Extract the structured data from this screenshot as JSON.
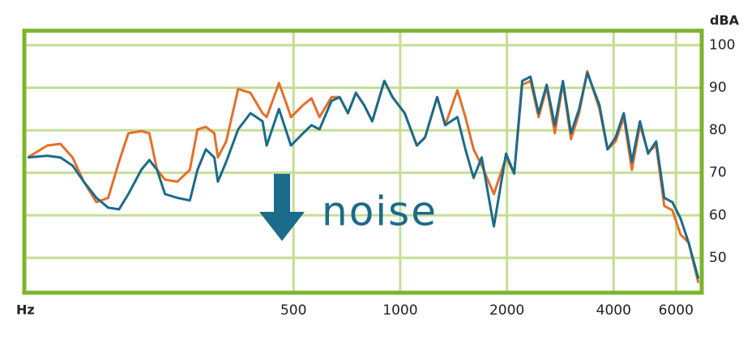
{
  "chart_data": {
    "type": "line",
    "x_label": "Hz",
    "y_label": "dBA",
    "annotation": "noise",
    "x": [
      89,
      101,
      110,
      119,
      128,
      139,
      150,
      161,
      171,
      186,
      196,
      206,
      217,
      235,
      255,
      268,
      283,
      299,
      306,
      323,
      349,
      378,
      409,
      420,
      455,
      479,
      492,
      532,
      562,
      592,
      640,
      675,
      712,
      750,
      791,
      834,
      902,
      951,
      1030,
      1114,
      1175,
      1271,
      1340,
      1450,
      1528,
      1611,
      1698,
      1838,
      1989,
      2097,
      2210,
      2331,
      2457,
      2590,
      2730,
      2878,
      3034,
      3198,
      3371,
      3648,
      3845,
      4053,
      4272,
      4503,
      4747,
      5004,
      5274,
      5560,
      5861,
      6178,
      6512,
      6940
    ],
    "series": [
      {
        "color": "#e2702b",
        "values": [
          73.6,
          76.4,
          76.8,
          73.6,
          67.9,
          63.1,
          64.1,
          72.6,
          79.3,
          79.8,
          79.3,
          70.7,
          68.4,
          67.9,
          70.7,
          80.2,
          80.8,
          79.3,
          73.6,
          77.4,
          89.7,
          88.8,
          84.0,
          83.1,
          91.1,
          85.9,
          83.1,
          85.9,
          87.5,
          83.1,
          87.8,
          87.8,
          84.0,
          88.8,
          85.9,
          82.1,
          91.6,
          87.8,
          84.0,
          76.4,
          78.3,
          87.8,
          81.2,
          89.4,
          83.1,
          75.5,
          71.7,
          65.0,
          73.6,
          69.8,
          90.7,
          91.6,
          83.1,
          90.1,
          79.3,
          91.1,
          77.9,
          84.0,
          93.9,
          85.0,
          75.5,
          77.4,
          83.1,
          70.7,
          81.2,
          74.9,
          76.4,
          62.2,
          61.2,
          55.5,
          53.6,
          44.1
        ]
      },
      {
        "color": "#1b6b8a",
        "values": [
          73.6,
          74.0,
          73.6,
          71.7,
          67.9,
          64.1,
          61.8,
          61.4,
          65.0,
          70.7,
          73.0,
          70.7,
          65.0,
          64.1,
          63.5,
          70.7,
          75.5,
          73.6,
          67.9,
          72.6,
          80.2,
          84.0,
          82.1,
          76.4,
          85.0,
          79.3,
          76.4,
          79.3,
          81.2,
          80.2,
          86.9,
          87.8,
          84.0,
          88.8,
          85.9,
          82.1,
          91.6,
          87.8,
          84.0,
          76.4,
          78.3,
          87.8,
          81.2,
          83.1,
          75.5,
          68.8,
          73.6,
          57.4,
          74.5,
          69.8,
          91.6,
          92.6,
          84.0,
          90.7,
          81.2,
          91.6,
          79.3,
          85.0,
          93.5,
          85.9,
          75.5,
          78.3,
          84.0,
          72.6,
          82.1,
          74.5,
          77.4,
          64.1,
          63.1,
          59.3,
          53.6,
          45.1
        ]
      }
    ],
    "xlim": [
      87,
      7090
    ],
    "ylim": [
      41.8,
      103.4
    ],
    "log_x": true,
    "grid": true,
    "xticks": [
      500,
      1000,
      2000,
      4000,
      6000
    ],
    "yticks": [
      50,
      60,
      70,
      80,
      90,
      100
    ]
  }
}
